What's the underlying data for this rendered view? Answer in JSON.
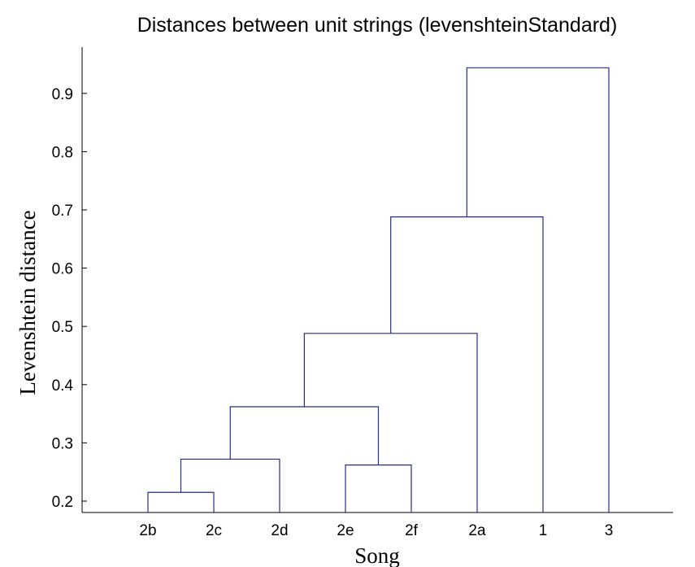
{
  "chart_data": {
    "type": "dendrogram",
    "title": "Distances between unit strings (levenshteinStandard)",
    "xlabel": "Song",
    "ylabel": "Levenshtein distance",
    "ylim": [
      0.18,
      0.98
    ],
    "yticks": [
      0.2,
      0.3,
      0.4,
      0.5,
      0.6,
      0.7,
      0.8,
      0.9
    ],
    "leaves": [
      "2b",
      "2c",
      "2d",
      "2e",
      "2f",
      "2a",
      "1",
      "3"
    ],
    "merges": [
      {
        "left": "2b",
        "right": "2c",
        "height": 0.215
      },
      {
        "left": "2e",
        "right": "2f",
        "height": 0.262
      },
      {
        "left": "(2b,2c)",
        "right": "2d",
        "height": 0.272
      },
      {
        "left": "(2b,2c,2d)",
        "right": "(2e,2f)",
        "height": 0.362
      },
      {
        "left": "(2b,2c,2d,2e,2f)",
        "right": "2a",
        "height": 0.488
      },
      {
        "left": "(2b,2c,2d,2e,2f,2a)",
        "right": "1",
        "height": 0.688
      },
      {
        "left": "(2b,2c,2d,2e,2f,2a,1)",
        "right": "3",
        "height": 0.944
      }
    ],
    "line_color": "#2a2a8c"
  }
}
